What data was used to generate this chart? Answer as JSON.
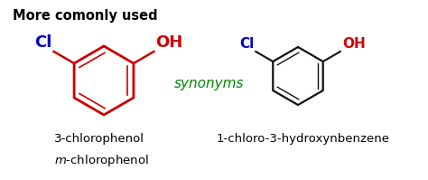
{
  "title": "More comonly used",
  "synonyms_text": "synonyms",
  "label1a": "3-chlorophenol",
  "label1b": "$m$-chlorophenol",
  "label2": "1-chloro-3-hydroxynbenzene",
  "cl_color": "#0000cc",
  "oh_color": "#cc0000",
  "ring1_color": "#cc0000",
  "ring2_color": "#111111",
  "synonyms_color": "#008800",
  "title_color": "#000000",
  "label_color": "#000000",
  "bg_color": "#ffffff",
  "fig_width": 4.74,
  "fig_height": 1.99,
  "dpi": 100
}
